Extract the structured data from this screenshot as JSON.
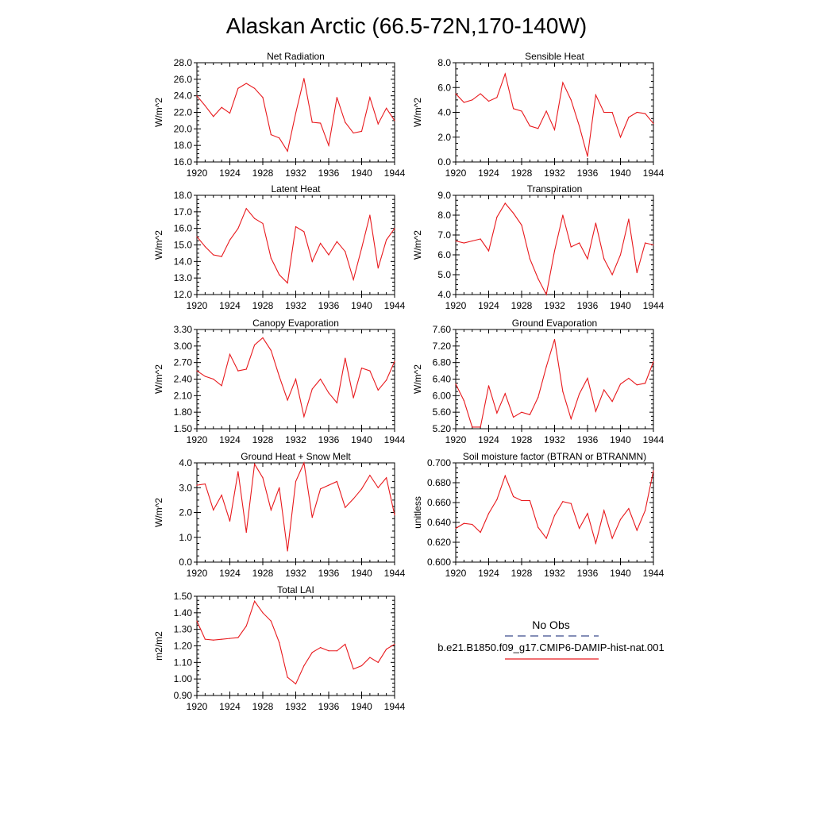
{
  "title": "Alaskan Arctic (66.5-72N,170-140W)",
  "colors": {
    "model_line": "#e8191d",
    "obs_line": "#3a4a8c",
    "axis": "#000000"
  },
  "legend": {
    "obs_label": "No Obs",
    "model_label": "b.e21.B1850.f09_g17.CMIP6-DAMIP-hist-nat.001"
  },
  "x_years": [
    1920,
    1921,
    1922,
    1923,
    1924,
    1925,
    1926,
    1927,
    1928,
    1929,
    1930,
    1931,
    1932,
    1933,
    1934,
    1935,
    1936,
    1937,
    1938,
    1939,
    1940,
    1941,
    1942,
    1943,
    1944
  ],
  "chart_data": [
    {
      "type": "line",
      "title": "Net Radiation",
      "ylabel": "W/m^2",
      "xlim": [
        1920,
        1944
      ],
      "ylim": [
        16.0,
        28.0
      ],
      "xticks": [
        "1920",
        "1924",
        "1928",
        "1932",
        "1936",
        "1940",
        "1944"
      ],
      "yticks": [
        "16.0",
        "18.0",
        "20.0",
        "22.0",
        "24.0",
        "26.0",
        "28.0"
      ],
      "values": [
        24.0,
        22.8,
        21.5,
        22.6,
        21.9,
        24.9,
        25.5,
        24.9,
        23.8,
        19.3,
        18.9,
        17.3,
        21.9,
        26.1,
        20.8,
        20.7,
        18.0,
        23.8,
        20.8,
        19.5,
        19.7,
        23.8,
        20.6,
        22.5,
        21.0
      ]
    },
    {
      "type": "line",
      "title": "Sensible Heat",
      "ylabel": "W/m^2",
      "xlim": [
        1920,
        1944
      ],
      "ylim": [
        0.0,
        8.0
      ],
      "xticks": [
        "1920",
        "1924",
        "1928",
        "1932",
        "1936",
        "1940",
        "1944"
      ],
      "yticks": [
        "0.0",
        "2.0",
        "4.0",
        "6.0",
        "8.0"
      ],
      "values": [
        5.5,
        4.8,
        5.0,
        5.5,
        4.9,
        5.2,
        7.1,
        4.3,
        4.1,
        2.9,
        2.7,
        4.1,
        2.6,
        6.4,
        5.0,
        2.9,
        0.45,
        5.4,
        4.0,
        4.0,
        2.0,
        3.6,
        4.0,
        3.9,
        3.1
      ]
    },
    {
      "type": "line",
      "title": "Latent Heat",
      "ylabel": "W/m^2",
      "xlim": [
        1920,
        1944
      ],
      "ylim": [
        12.0,
        18.0
      ],
      "xticks": [
        "1920",
        "1924",
        "1928",
        "1932",
        "1936",
        "1940",
        "1944"
      ],
      "yticks": [
        "12.0",
        "13.0",
        "14.0",
        "15.0",
        "16.0",
        "17.0",
        "18.0"
      ],
      "values": [
        15.5,
        14.9,
        14.4,
        14.3,
        15.3,
        16.0,
        17.2,
        16.6,
        16.3,
        14.2,
        13.2,
        12.7,
        16.1,
        15.8,
        14.0,
        15.1,
        14.4,
        15.2,
        14.6,
        12.9,
        14.8,
        16.8,
        13.6,
        15.3,
        16.0
      ]
    },
    {
      "type": "line",
      "title": "Transpiration",
      "ylabel": "W/m^2",
      "xlim": [
        1920,
        1944
      ],
      "ylim": [
        4.0,
        9.0
      ],
      "xticks": [
        "1920",
        "1924",
        "1928",
        "1932",
        "1936",
        "1940",
        "1944"
      ],
      "yticks": [
        "4.0",
        "5.0",
        "6.0",
        "7.0",
        "8.0",
        "9.0"
      ],
      "values": [
        6.7,
        6.6,
        6.7,
        6.8,
        6.2,
        7.9,
        8.6,
        8.1,
        7.5,
        5.8,
        4.8,
        4.0,
        6.2,
        8.0,
        6.4,
        6.6,
        5.8,
        7.6,
        5.8,
        5.0,
        6.0,
        7.8,
        5.1,
        6.6,
        6.5
      ]
    },
    {
      "type": "line",
      "title": "Canopy Evaporation",
      "ylabel": "W/m^2",
      "xlim": [
        1920,
        1944
      ],
      "ylim": [
        1.5,
        3.3
      ],
      "xticks": [
        "1920",
        "1924",
        "1928",
        "1932",
        "1936",
        "1940",
        "1944"
      ],
      "yticks": [
        "1.50",
        "1.80",
        "2.10",
        "2.40",
        "2.70",
        "3.00",
        "3.30"
      ],
      "values": [
        2.55,
        2.45,
        2.4,
        2.28,
        2.85,
        2.55,
        2.58,
        3.02,
        3.15,
        2.92,
        2.45,
        2.02,
        2.4,
        1.72,
        2.22,
        2.4,
        2.15,
        1.97,
        2.78,
        2.06,
        2.6,
        2.55,
        2.2,
        2.38,
        2.72
      ]
    },
    {
      "type": "line",
      "title": "Ground Evaporation",
      "ylabel": "W/m^2",
      "xlim": [
        1920,
        1944
      ],
      "ylim": [
        5.2,
        7.6
      ],
      "xticks": [
        "1920",
        "1924",
        "1928",
        "1932",
        "1936",
        "1940",
        "1944"
      ],
      "yticks": [
        "5.20",
        "5.60",
        "6.00",
        "6.40",
        "6.80",
        "7.20",
        "7.60"
      ],
      "values": [
        6.28,
        5.88,
        5.24,
        5.24,
        6.24,
        5.58,
        6.05,
        5.48,
        5.6,
        5.54,
        5.96,
        6.7,
        7.36,
        6.1,
        5.44,
        6.04,
        6.42,
        5.62,
        6.14,
        5.86,
        6.28,
        6.42,
        6.26,
        6.3,
        6.82
      ]
    },
    {
      "type": "line",
      "title": "Ground Heat + Snow Melt",
      "ylabel": "W/m^2",
      "xlim": [
        1920,
        1944
      ],
      "ylim": [
        0.0,
        4.0
      ],
      "xticks": [
        "1920",
        "1924",
        "1928",
        "1932",
        "1936",
        "1940",
        "1944"
      ],
      "yticks": [
        "0.0",
        "1.0",
        "2.0",
        "3.0",
        "4.0"
      ],
      "values": [
        3.1,
        3.15,
        2.1,
        2.7,
        1.65,
        3.65,
        1.2,
        3.95,
        3.4,
        2.1,
        3.0,
        0.45,
        3.25,
        4.0,
        1.8,
        2.95,
        3.1,
        3.25,
        2.2,
        2.55,
        2.95,
        3.5,
        3.0,
        3.4,
        1.9
      ]
    },
    {
      "type": "line",
      "title": "Soil moisture factor (BTRAN or BTRANMN)",
      "ylabel": "unitless",
      "xlim": [
        1920,
        1944
      ],
      "ylim": [
        0.6,
        0.7
      ],
      "xticks": [
        "1920",
        "1924",
        "1928",
        "1932",
        "1936",
        "1940",
        "1944"
      ],
      "yticks": [
        "0.600",
        "0.620",
        "0.640",
        "0.660",
        "0.680",
        "0.700"
      ],
      "values": [
        0.634,
        0.639,
        0.638,
        0.63,
        0.649,
        0.663,
        0.687,
        0.666,
        0.662,
        0.662,
        0.635,
        0.624,
        0.647,
        0.661,
        0.659,
        0.634,
        0.649,
        0.619,
        0.652,
        0.624,
        0.643,
        0.654,
        0.632,
        0.652,
        0.692
      ]
    },
    {
      "type": "line",
      "title": "Total LAI",
      "ylabel": "m2/m2",
      "xlim": [
        1920,
        1944
      ],
      "ylim": [
        0.9,
        1.5
      ],
      "xticks": [
        "1920",
        "1924",
        "1928",
        "1932",
        "1936",
        "1940",
        "1944"
      ],
      "yticks": [
        "0.90",
        "1.00",
        "1.10",
        "1.20",
        "1.30",
        "1.40",
        "1.50"
      ],
      "values": [
        1.35,
        1.24,
        1.235,
        1.24,
        1.245,
        1.25,
        1.32,
        1.47,
        1.4,
        1.35,
        1.22,
        1.01,
        0.97,
        1.08,
        1.16,
        1.19,
        1.17,
        1.17,
        1.21,
        1.06,
        1.08,
        1.13,
        1.1,
        1.18,
        1.21
      ]
    }
  ]
}
